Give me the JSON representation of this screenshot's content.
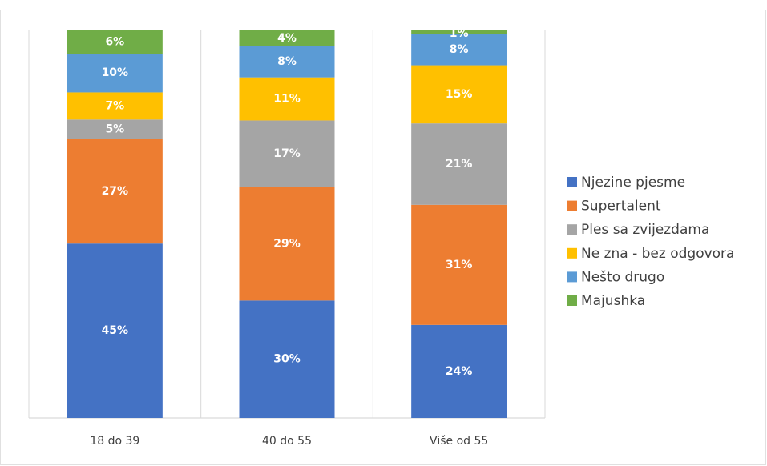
{
  "chart_data": {
    "type": "stacked_bar",
    "categories": [
      "18 do 39",
      "40 do 55",
      "Više od 55"
    ],
    "series": [
      {
        "name": "Njezine pjesme",
        "color": "#4472c4",
        "values": [
          45,
          30,
          24
        ],
        "value_labels": [
          "45%",
          "30%",
          "24%"
        ]
      },
      {
        "name": "Supertalent",
        "color": "#ed7d31",
        "values": [
          27,
          29,
          31
        ],
        "value_labels": [
          "27%",
          "29%",
          "31%"
        ]
      },
      {
        "name": "Ples sa zvijezdama",
        "color": "#a5a5a5",
        "values": [
          5,
          17,
          21
        ],
        "value_labels": [
          "5%",
          "17%",
          "21%"
        ]
      },
      {
        "name": "Ne zna - bez odgovora",
        "color": "#ffc000",
        "values": [
          7,
          11,
          15
        ],
        "value_labels": [
          "7%",
          "11%",
          "15%"
        ]
      },
      {
        "name": "Nešto drugo",
        "color": "#5b9bd5",
        "values": [
          10,
          8,
          8
        ],
        "value_labels": [
          "10%",
          "8%",
          "8%"
        ]
      },
      {
        "name": "Majushka",
        "color": "#70ad47",
        "values": [
          6,
          4,
          1
        ],
        "value_labels": [
          "6%",
          "4%",
          "1%"
        ]
      }
    ],
    "legend": "right"
  }
}
